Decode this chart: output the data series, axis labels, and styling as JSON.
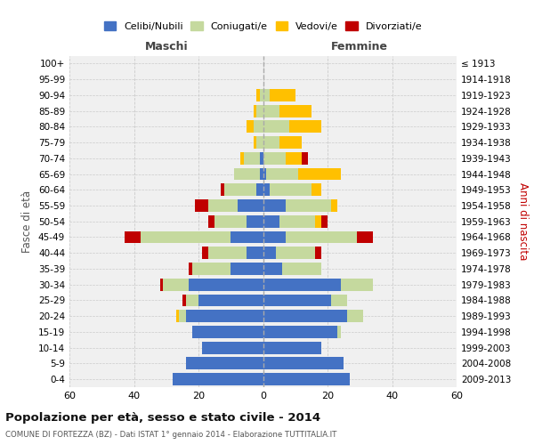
{
  "age_groups": [
    "0-4",
    "5-9",
    "10-14",
    "15-19",
    "20-24",
    "25-29",
    "30-34",
    "35-39",
    "40-44",
    "45-49",
    "50-54",
    "55-59",
    "60-64",
    "65-69",
    "70-74",
    "75-79",
    "80-84",
    "85-89",
    "90-94",
    "95-99",
    "100+"
  ],
  "birth_years": [
    "2009-2013",
    "2004-2008",
    "1999-2003",
    "1994-1998",
    "1989-1993",
    "1984-1988",
    "1979-1983",
    "1974-1978",
    "1969-1973",
    "1964-1968",
    "1959-1963",
    "1954-1958",
    "1949-1953",
    "1944-1948",
    "1939-1943",
    "1934-1938",
    "1929-1933",
    "1924-1928",
    "1919-1923",
    "1914-1918",
    "≤ 1913"
  ],
  "maschi": {
    "celibi": [
      28,
      24,
      19,
      22,
      24,
      20,
      23,
      10,
      5,
      10,
      5,
      8,
      2,
      1,
      1,
      0,
      0,
      0,
      0,
      0,
      0
    ],
    "coniugati": [
      0,
      0,
      0,
      0,
      2,
      4,
      8,
      12,
      12,
      28,
      10,
      9,
      10,
      8,
      5,
      2,
      3,
      2,
      1,
      0,
      0
    ],
    "vedovi": [
      0,
      0,
      0,
      0,
      1,
      0,
      0,
      0,
      0,
      0,
      0,
      0,
      0,
      0,
      1,
      1,
      2,
      1,
      1,
      0,
      0
    ],
    "divorziati": [
      0,
      0,
      0,
      0,
      0,
      1,
      1,
      1,
      2,
      5,
      2,
      4,
      1,
      0,
      0,
      0,
      0,
      0,
      0,
      0,
      0
    ]
  },
  "femmine": {
    "nubili": [
      27,
      25,
      18,
      23,
      26,
      21,
      24,
      6,
      4,
      7,
      5,
      7,
      2,
      1,
      0,
      0,
      0,
      0,
      0,
      0,
      0
    ],
    "coniugate": [
      0,
      0,
      0,
      1,
      5,
      5,
      10,
      12,
      12,
      22,
      11,
      14,
      13,
      10,
      7,
      5,
      8,
      5,
      2,
      0,
      0
    ],
    "vedove": [
      0,
      0,
      0,
      0,
      0,
      0,
      0,
      0,
      0,
      0,
      2,
      2,
      3,
      13,
      5,
      7,
      10,
      10,
      8,
      0,
      0
    ],
    "divorziate": [
      0,
      0,
      0,
      0,
      0,
      0,
      0,
      0,
      2,
      5,
      2,
      0,
      0,
      0,
      2,
      0,
      0,
      0,
      0,
      0,
      0
    ]
  },
  "colors": {
    "celibi": "#4472c4",
    "coniugati": "#c5d99e",
    "vedovi": "#ffc000",
    "divorziati": "#c00000"
  },
  "xlim": 60,
  "title": "Popolazione per età, sesso e stato civile - 2014",
  "subtitle": "COMUNE DI FORTEZZA (BZ) - Dati ISTAT 1° gennaio 2014 - Elaborazione TUTTITALIA.IT",
  "xlabel_left": "Maschi",
  "xlabel_right": "Femmine",
  "ylabel_left": "Fasce di età",
  "ylabel_right": "Anni di nascita",
  "bg_color": "#f0f0f0",
  "grid_color": "#cccccc"
}
